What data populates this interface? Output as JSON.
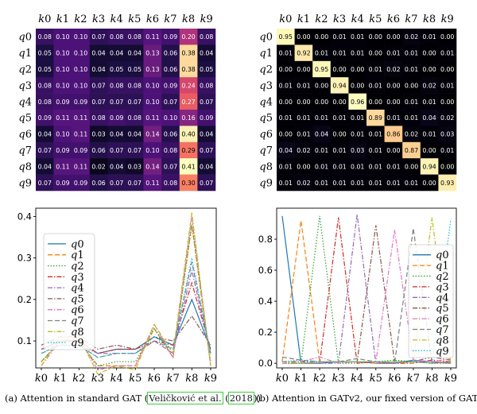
{
  "captions": {
    "a_prefix": "(a) Attention in standard GAT (",
    "a_cite_author": "Veličković et al.",
    "a_cite_year": "2018",
    "a_suffix": "))",
    "b_text": "(b) Attention in GATv2, our fixed version of GAT"
  },
  "chart_data": [
    {
      "type": "heatmap",
      "panel": "a",
      "title": "",
      "x_labels": [
        "k0",
        "k1",
        "k2",
        "k3",
        "k4",
        "k5",
        "k6",
        "k7",
        "k8",
        "k9"
      ],
      "y_labels": [
        "q0",
        "q1",
        "q2",
        "q3",
        "q4",
        "q5",
        "q6",
        "q7",
        "q8",
        "q9"
      ],
      "vmin": 0,
      "vmax": 0.41,
      "colormap": "magma-like (dark purple to cream)",
      "values": [
        [
          0.08,
          0.1,
          0.1,
          0.07,
          0.08,
          0.08,
          0.11,
          0.09,
          0.2,
          0.08
        ],
        [
          0.05,
          0.1,
          0.1,
          0.04,
          0.04,
          0.04,
          0.13,
          0.06,
          0.38,
          0.04
        ],
        [
          0.05,
          0.1,
          0.1,
          0.04,
          0.05,
          0.05,
          0.13,
          0.06,
          0.38,
          0.05
        ],
        [
          0.08,
          0.1,
          0.1,
          0.07,
          0.08,
          0.08,
          0.1,
          0.09,
          0.24,
          0.08
        ],
        [
          0.08,
          0.09,
          0.09,
          0.07,
          0.07,
          0.07,
          0.1,
          0.07,
          0.27,
          0.07
        ],
        [
          0.09,
          0.11,
          0.11,
          0.08,
          0.09,
          0.08,
          0.11,
          0.1,
          0.16,
          0.09
        ],
        [
          0.04,
          0.1,
          0.11,
          0.03,
          0.04,
          0.04,
          0.14,
          0.06,
          0.4,
          0.04
        ],
        [
          0.07,
          0.09,
          0.09,
          0.06,
          0.07,
          0.07,
          0.1,
          0.08,
          0.29,
          0.07
        ],
        [
          0.04,
          0.11,
          0.11,
          0.02,
          0.04,
          0.03,
          0.14,
          0.07,
          0.41,
          0.04
        ],
        [
          0.07,
          0.09,
          0.09,
          0.06,
          0.07,
          0.07,
          0.11,
          0.08,
          0.3,
          0.07
        ]
      ]
    },
    {
      "type": "heatmap",
      "panel": "b",
      "title": "",
      "x_labels": [
        "k0",
        "k1",
        "k2",
        "k3",
        "k4",
        "k5",
        "k6",
        "k7",
        "k8",
        "k9"
      ],
      "y_labels": [
        "q0",
        "q1",
        "q2",
        "q3",
        "q4",
        "q5",
        "q6",
        "q7",
        "q8",
        "q9"
      ],
      "vmin": 0,
      "vmax": 0.96,
      "colormap": "magma-like (black to cream)",
      "values": [
        [
          0.95,
          0.0,
          0.0,
          0.01,
          0.01,
          0.0,
          0.0,
          0.02,
          0.01,
          0.0
        ],
        [
          0.01,
          0.92,
          0.01,
          0.01,
          0.01,
          0.0,
          0.01,
          0.01,
          0.0,
          0.01
        ],
        [
          0.0,
          0.0,
          0.95,
          0.0,
          0.0,
          0.01,
          0.02,
          0.01,
          0.0,
          0.0
        ],
        [
          0.01,
          0.01,
          0.0,
          0.94,
          0.0,
          0.01,
          0.0,
          0.0,
          0.02,
          0.01
        ],
        [
          0.0,
          0.0,
          0.0,
          0.0,
          0.96,
          0.0,
          0.0,
          0.01,
          0.01,
          0.0
        ],
        [
          0.01,
          0.01,
          0.01,
          0.01,
          0.01,
          0.89,
          0.01,
          0.01,
          0.04,
          0.02
        ],
        [
          0.0,
          0.01,
          0.04,
          0.0,
          0.01,
          0.01,
          0.86,
          0.02,
          0.01,
          0.03
        ],
        [
          0.04,
          0.02,
          0.01,
          0.01,
          0.03,
          0.01,
          0.0,
          0.87,
          0.0,
          0.01
        ],
        [
          0.01,
          0.0,
          0.01,
          0.01,
          0.01,
          0.01,
          0.01,
          0.0,
          0.94,
          0.0
        ],
        [
          0.01,
          0.02,
          0.01,
          0.01,
          0.01,
          0.01,
          0.01,
          0.01,
          0.0,
          0.93
        ]
      ]
    },
    {
      "type": "line",
      "panel": "a",
      "title": "",
      "categories": [
        "k0",
        "k1",
        "k2",
        "k3",
        "k4",
        "k5",
        "k6",
        "k7",
        "k8",
        "k9"
      ],
      "ylim": [
        0.035,
        0.42
      ],
      "yticks": [
        0.1,
        0.2,
        0.3,
        0.4
      ],
      "grid": false,
      "legend_position": "left-center",
      "series": [
        {
          "name": "q0",
          "color": "#1f77b4",
          "dash": "solid",
          "values": [
            0.08,
            0.1,
            0.1,
            0.07,
            0.08,
            0.08,
            0.11,
            0.09,
            0.2,
            0.08
          ]
        },
        {
          "name": "q1",
          "color": "#ff7f0e",
          "dash": "dashed",
          "values": [
            0.05,
            0.1,
            0.1,
            0.04,
            0.04,
            0.04,
            0.13,
            0.06,
            0.38,
            0.04
          ]
        },
        {
          "name": "q2",
          "color": "#2ca02c",
          "dash": "dotted",
          "values": [
            0.05,
            0.1,
            0.1,
            0.04,
            0.05,
            0.05,
            0.13,
            0.06,
            0.38,
            0.05
          ]
        },
        {
          "name": "q3",
          "color": "#d62728",
          "dash": "dashdot",
          "values": [
            0.08,
            0.1,
            0.1,
            0.07,
            0.08,
            0.08,
            0.1,
            0.09,
            0.24,
            0.08
          ]
        },
        {
          "name": "q4",
          "color": "#9467bd",
          "dash": "dashdot",
          "values": [
            0.08,
            0.09,
            0.09,
            0.07,
            0.07,
            0.07,
            0.1,
            0.07,
            0.27,
            0.07
          ]
        },
        {
          "name": "q5",
          "color": "#8c564b",
          "dash": "dashdot",
          "values": [
            0.09,
            0.11,
            0.11,
            0.08,
            0.09,
            0.08,
            0.11,
            0.1,
            0.16,
            0.09
          ]
        },
        {
          "name": "q6",
          "color": "#e377c2",
          "dash": "dashdot",
          "values": [
            0.04,
            0.1,
            0.11,
            0.03,
            0.04,
            0.04,
            0.14,
            0.06,
            0.4,
            0.04
          ]
        },
        {
          "name": "q7",
          "color": "#7f7f7f",
          "dash": "dashed",
          "values": [
            0.07,
            0.09,
            0.09,
            0.06,
            0.07,
            0.07,
            0.1,
            0.08,
            0.29,
            0.07
          ]
        },
        {
          "name": "q8",
          "color": "#bcbd22",
          "dash": "dashdot",
          "values": [
            0.04,
            0.11,
            0.11,
            0.02,
            0.04,
            0.03,
            0.14,
            0.07,
            0.41,
            0.04
          ]
        },
        {
          "name": "q9",
          "color": "#17becf",
          "dash": "dotted",
          "values": [
            0.07,
            0.09,
            0.09,
            0.06,
            0.07,
            0.07,
            0.11,
            0.08,
            0.3,
            0.07
          ]
        }
      ]
    },
    {
      "type": "line",
      "panel": "b",
      "title": "",
      "categories": [
        "k0",
        "k1",
        "k2",
        "k3",
        "k4",
        "k5",
        "k6",
        "k7",
        "k8",
        "k9"
      ],
      "ylim": [
        -0.03,
        1.0
      ],
      "yticks": [
        0.0,
        0.2,
        0.4,
        0.6,
        0.8
      ],
      "grid": false,
      "legend_position": "right",
      "series": [
        {
          "name": "q0",
          "color": "#1f77b4",
          "dash": "solid",
          "values": [
            0.95,
            0.0,
            0.0,
            0.01,
            0.01,
            0.0,
            0.0,
            0.02,
            0.01,
            0.0
          ]
        },
        {
          "name": "q1",
          "color": "#ff7f0e",
          "dash": "dashed",
          "values": [
            0.01,
            0.92,
            0.01,
            0.01,
            0.01,
            0.0,
            0.01,
            0.01,
            0.0,
            0.01
          ]
        },
        {
          "name": "q2",
          "color": "#2ca02c",
          "dash": "dotted",
          "values": [
            0.0,
            0.0,
            0.95,
            0.0,
            0.0,
            0.01,
            0.02,
            0.01,
            0.0,
            0.0
          ]
        },
        {
          "name": "q3",
          "color": "#d62728",
          "dash": "dashdot",
          "values": [
            0.01,
            0.01,
            0.0,
            0.94,
            0.0,
            0.01,
            0.0,
            0.0,
            0.02,
            0.01
          ]
        },
        {
          "name": "q4",
          "color": "#9467bd",
          "dash": "dashdot",
          "values": [
            0.0,
            0.0,
            0.0,
            0.0,
            0.96,
            0.0,
            0.0,
            0.01,
            0.01,
            0.0
          ]
        },
        {
          "name": "q5",
          "color": "#8c564b",
          "dash": "dashdot",
          "values": [
            0.01,
            0.01,
            0.01,
            0.01,
            0.01,
            0.89,
            0.01,
            0.01,
            0.04,
            0.02
          ]
        },
        {
          "name": "q6",
          "color": "#e377c2",
          "dash": "dashdot",
          "values": [
            0.0,
            0.01,
            0.04,
            0.0,
            0.01,
            0.01,
            0.86,
            0.02,
            0.01,
            0.03
          ]
        },
        {
          "name": "q7",
          "color": "#7f7f7f",
          "dash": "dashed",
          "values": [
            0.04,
            0.02,
            0.01,
            0.01,
            0.03,
            0.01,
            0.0,
            0.87,
            0.0,
            0.01
          ]
        },
        {
          "name": "q8",
          "color": "#bcbd22",
          "dash": "dashdot",
          "values": [
            0.01,
            0.0,
            0.01,
            0.01,
            0.01,
            0.01,
            0.01,
            0.0,
            0.94,
            0.0
          ]
        },
        {
          "name": "q9",
          "color": "#17becf",
          "dash": "dotted",
          "values": [
            0.01,
            0.02,
            0.01,
            0.01,
            0.01,
            0.01,
            0.01,
            0.01,
            0.0,
            0.93
          ]
        }
      ]
    }
  ]
}
